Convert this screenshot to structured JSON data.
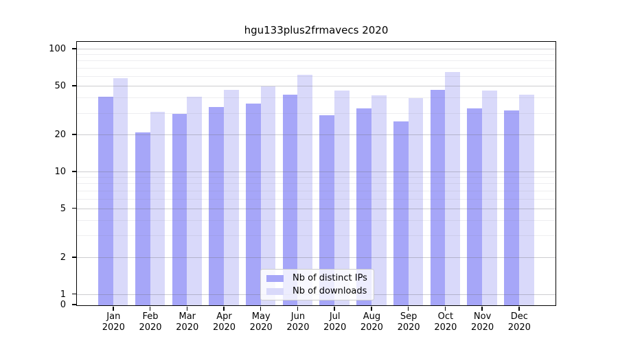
{
  "page_background": "#ffffff",
  "chart_data": {
    "type": "bar",
    "title": "hgu133plus2frmavecs 2020",
    "categories": [
      "Jan",
      "Feb",
      "Mar",
      "Apr",
      "May",
      "Jun",
      "Jul",
      "Aug",
      "Sep",
      "Oct",
      "Nov",
      "Dec"
    ],
    "category_year_line": "2020",
    "series": [
      {
        "name": "Nb of distinct IPs",
        "color": "#a6a6f8",
        "values": [
          41,
          21,
          30,
          34,
          36,
          43,
          29,
          33,
          26,
          47,
          33,
          32
        ]
      },
      {
        "name": "Nb of downloads",
        "color": "#d9d9fa",
        "values": [
          58,
          31,
          41,
          47,
          50,
          62,
          46,
          42,
          40,
          65,
          46,
          43
        ]
      }
    ],
    "yscale": "symlog",
    "ylim": [
      0,
      116
    ],
    "yticks": [
      100,
      50,
      20,
      10,
      5,
      2,
      1,
      0
    ],
    "yticks_minor": [
      90,
      80,
      70,
      60,
      40,
      30,
      9,
      8,
      7,
      6,
      4,
      3
    ],
    "xlabel": "",
    "ylabel": "",
    "grid": true,
    "grid_above_bars": true,
    "legend_position": "inside lower center"
  },
  "colors": {
    "spine": "#000000",
    "grid_major": "#c8c8c8",
    "grid_minor": "#ededed",
    "legend_border": "#cccccc",
    "legend_background": "rgba(255,255,255,0.8)"
  }
}
